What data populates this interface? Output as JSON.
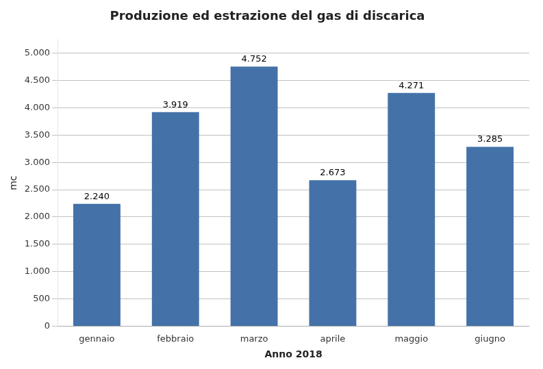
{
  "chart_data": {
    "type": "bar",
    "title": "Produzione ed estrazione del gas di discarica",
    "categories": [
      "gennaio",
      "febbraio",
      "marzo",
      "aprile",
      "maggio",
      "giugno"
    ],
    "values": [
      2240,
      3919,
      4752,
      2673,
      4271,
      3285
    ],
    "value_labels": [
      "2.240",
      "3.919",
      "4.752",
      "2.673",
      "4.271",
      "3.285"
    ],
    "data_labels": true,
    "color": "#4472A8",
    "xlabel": "Anno 2018",
    "ylabel": "mc",
    "ylim": [
      0,
      5250
    ],
    "yticks": [
      0,
      500,
      {
        "value": 1000,
        "label": "1.000"
      },
      {
        "value": 1500,
        "label": "1.500"
      },
      {
        "value": 2000,
        "label": "2.000"
      },
      {
        "value": 2500,
        "label": "2.500"
      },
      {
        "value": 3000,
        "label": "3.000"
      },
      {
        "value": 3500,
        "label": "3.500"
      },
      {
        "value": 4000,
        "label": "4.000"
      },
      {
        "value": 4500,
        "label": "4.500"
      },
      {
        "value": 5000,
        "label": "5.000"
      }
    ],
    "grid": true
  }
}
